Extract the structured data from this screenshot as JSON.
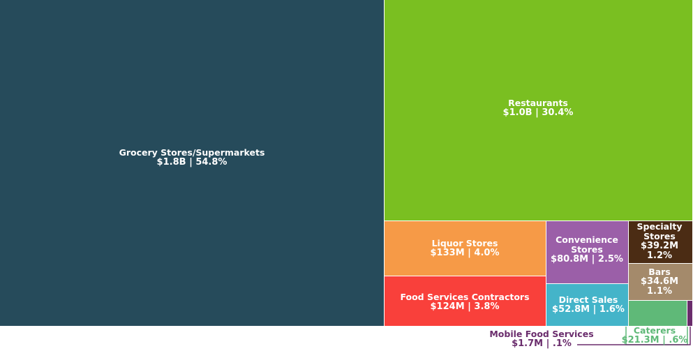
{
  "chart_data": {
    "type": "treemap",
    "title": "",
    "items": [
      {
        "name": "Grocery Stores/Supermarkets",
        "value_label": "$1.8B | 54.8%",
        "value": 1800000000,
        "share": 54.8,
        "color": "#264b5b",
        "text_color": "#ffffff"
      },
      {
        "name": "Restaurants",
        "value_label": "$1.0B | 30.4%",
        "value": 1000000000,
        "share": 30.4,
        "color": "#7abf21",
        "text_color": "#ffffff"
      },
      {
        "name": "Liquor Stores",
        "value_label": "$133M | 4.0%",
        "value": 133000000,
        "share": 4.0,
        "color": "#f69a47",
        "text_color": "#ffffff"
      },
      {
        "name": "Food Services Contractors",
        "value_label": "$124M | 3.8%",
        "value": 124000000,
        "share": 3.8,
        "color": "#f9403b",
        "text_color": "#ffffff"
      },
      {
        "name": "Convenience Stores",
        "value_label": "$80.8M | 2.5%",
        "value": 80800000,
        "share": 2.5,
        "color": "#9b5fa8",
        "text_color": "#ffffff"
      },
      {
        "name": "Direct Sales",
        "value_label": "$52.8M | 1.6%",
        "value": 52800000,
        "share": 1.6,
        "color": "#44b4c9",
        "text_color": "#ffffff"
      },
      {
        "name": "Specialty Stores",
        "value_label": "$39.2M | 1.2%",
        "value": 39200000,
        "share": 1.2,
        "color": "#4b2c14",
        "text_color": "#ffffff"
      },
      {
        "name": "Bars",
        "value_label": "$34.6M | 1.1%",
        "value": 34600000,
        "share": 1.1,
        "color": "#a48a6b",
        "text_color": "#ffffff"
      },
      {
        "name": "Caterers",
        "value_label": "$21.3M | .6%",
        "value": 21300000,
        "share": 0.6,
        "color": "#5fb978",
        "text_color": "#5fb978"
      },
      {
        "name": "Mobile Food Services",
        "value_label": "$1.7M | .1%",
        "value": 1700000,
        "share": 0.1,
        "color": "#6a2c6c",
        "text_color": "#6a2c6c"
      }
    ]
  }
}
